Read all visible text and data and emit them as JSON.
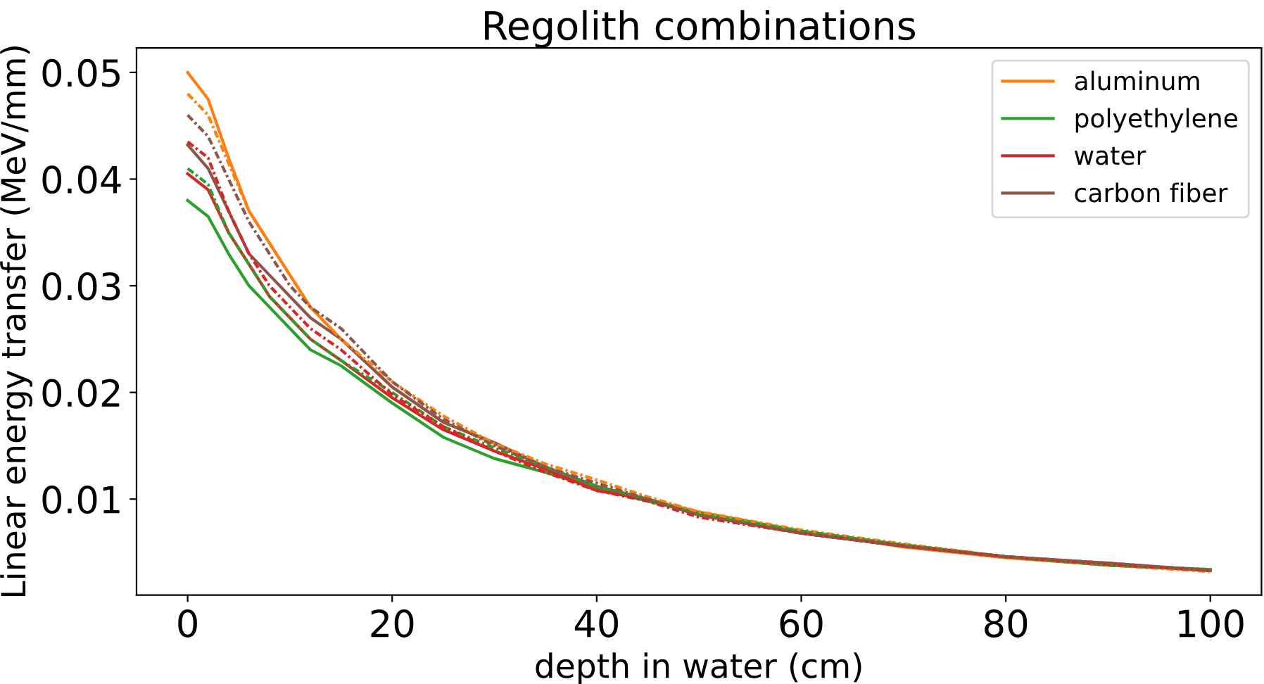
{
  "chart_data": {
    "type": "line",
    "title": "Regolith combinations",
    "xlabel": "depth in water (cm)",
    "ylabel": "Linear energy transfer (MeV/mm)",
    "x": [
      0,
      2,
      4,
      6,
      8,
      10,
      12,
      15,
      20,
      25,
      30,
      35,
      40,
      45,
      50,
      60,
      70,
      80,
      90,
      100
    ],
    "xlim": [
      -5,
      105
    ],
    "ylim": [
      0.001,
      0.0523
    ],
    "xticks": [
      0,
      20,
      40,
      60,
      80,
      100
    ],
    "yticks": [
      0.01,
      0.02,
      0.03,
      0.04,
      0.05
    ],
    "legend": "top right",
    "grid": false,
    "marker": "none",
    "series": [
      {
        "name": "aluminum",
        "color": "#ff7f0e",
        "line_style": "solid",
        "values": [
          0.05,
          0.0475,
          0.042,
          0.037,
          0.034,
          0.031,
          0.028,
          0.025,
          0.0205,
          0.0172,
          0.0152,
          0.013,
          0.011,
          0.01,
          0.0088,
          0.007,
          0.0055,
          0.0045,
          0.0038,
          0.0033
        ]
      },
      {
        "name": "polyethylene",
        "color": "#2ca02c",
        "line_style": "solid",
        "values": [
          0.038,
          0.0365,
          0.033,
          0.03,
          0.028,
          0.026,
          0.024,
          0.0225,
          0.019,
          0.0158,
          0.0138,
          0.0125,
          0.011,
          0.0098,
          0.0087,
          0.007,
          0.0057,
          0.0046,
          0.0038,
          0.0034
        ]
      },
      {
        "name": "water",
        "color": "#d62728",
        "line_style": "solid",
        "values": [
          0.0405,
          0.039,
          0.035,
          0.032,
          0.029,
          0.027,
          0.025,
          0.023,
          0.0195,
          0.0165,
          0.0145,
          0.0128,
          0.0108,
          0.01,
          0.0085,
          0.0068,
          0.0056,
          0.0046,
          0.0039,
          0.0033
        ]
      },
      {
        "name": "carbon fiber",
        "color": "#8c564b",
        "line_style": "solid",
        "values": [
          0.0432,
          0.041,
          0.037,
          0.033,
          0.031,
          0.029,
          0.027,
          0.025,
          0.0205,
          0.0172,
          0.0153,
          0.013,
          0.0112,
          0.01,
          0.0085,
          0.0068,
          0.0056,
          0.0046,
          0.004,
          0.0033
        ]
      },
      {
        "color": "#ff7f0e",
        "line_style": "dashdot",
        "values": [
          0.048,
          0.046,
          0.0415,
          0.037,
          0.034,
          0.031,
          0.028,
          0.025,
          0.021,
          0.0178,
          0.0152,
          0.0133,
          0.0118,
          0.0102,
          0.0088,
          0.0071,
          0.0058,
          0.0046,
          0.0038,
          0.0032
        ]
      },
      {
        "color": "#2ca02c",
        "line_style": "dashdot",
        "values": [
          0.041,
          0.0395,
          0.035,
          0.032,
          0.029,
          0.027,
          0.025,
          0.023,
          0.02,
          0.0168,
          0.0148,
          0.013,
          0.0112,
          0.01,
          0.0085,
          0.007,
          0.0057,
          0.0046,
          0.0038,
          0.0034
        ]
      },
      {
        "color": "#d62728",
        "line_style": "dashdot",
        "values": [
          0.0435,
          0.042,
          0.037,
          0.033,
          0.03,
          0.028,
          0.026,
          0.024,
          0.0198,
          0.0168,
          0.0145,
          0.0125,
          0.0108,
          0.0098,
          0.0083,
          0.0068,
          0.0056,
          0.0046,
          0.0039,
          0.0033
        ]
      },
      {
        "color": "#8c564b",
        "line_style": "dashdot",
        "values": [
          0.046,
          0.044,
          0.04,
          0.036,
          0.033,
          0.03,
          0.028,
          0.026,
          0.021,
          0.0175,
          0.015,
          0.013,
          0.0115,
          0.01,
          0.0085,
          0.0068,
          0.0056,
          0.0046,
          0.004,
          0.0033
        ]
      }
    ]
  }
}
